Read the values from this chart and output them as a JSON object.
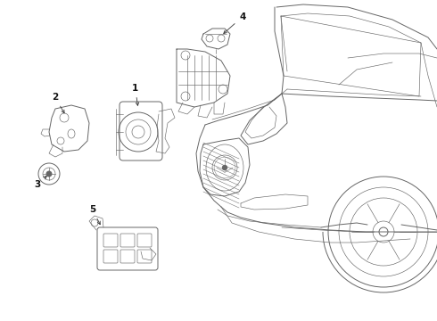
{
  "bg_color": "#ffffff",
  "line_color": "#666666",
  "fig_width": 4.9,
  "fig_height": 3.6,
  "dpi": 100
}
